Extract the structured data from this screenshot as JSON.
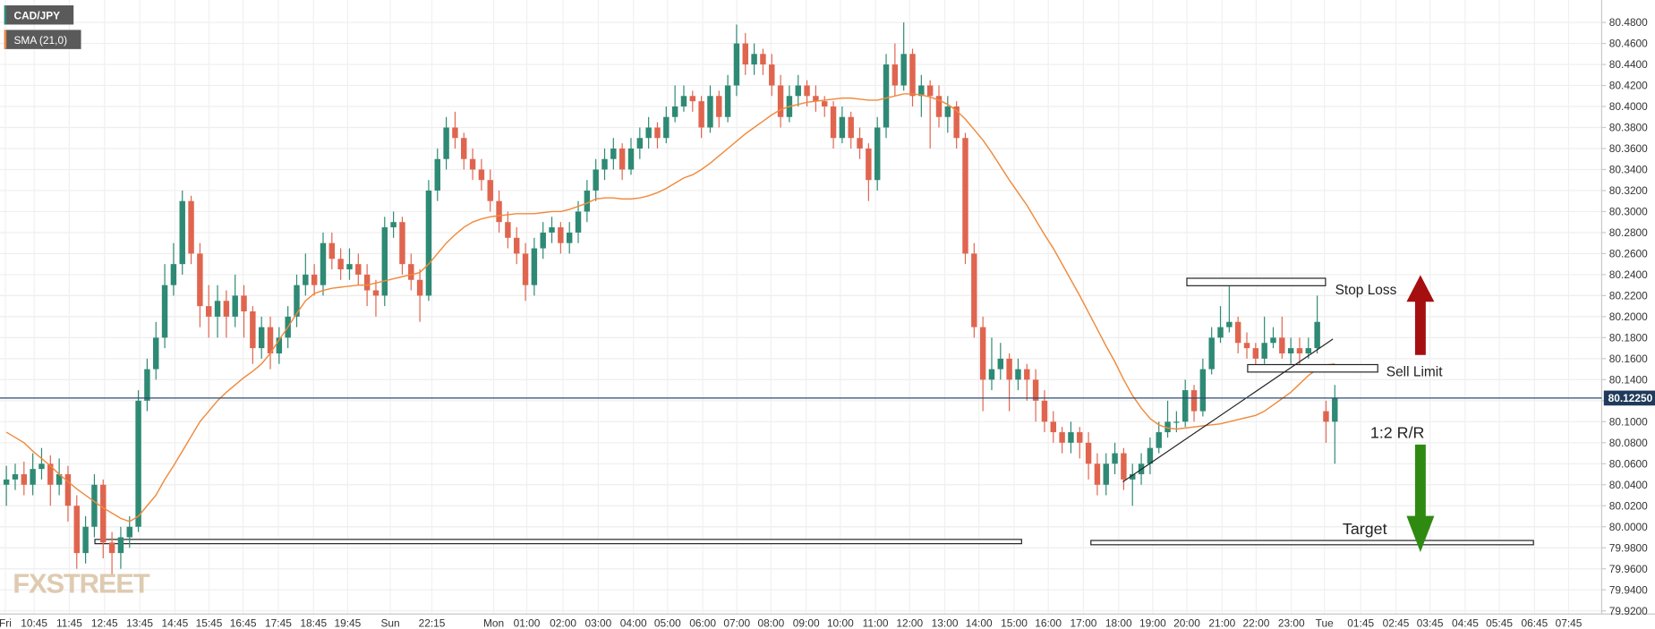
{
  "chart_data": {
    "type": "candlestick",
    "symbol": "CAD/JPY",
    "indicator": "SMA (21,0)",
    "watermark": "FXSTREET",
    "up_color": "#2e8a74",
    "down_color": "#e0654f",
    "sma_color": "#f08a3c",
    "grid": true,
    "ylim": [
      79.92,
      80.48
    ],
    "yticks": [
      {
        "value": 79.92,
        "label": "79.9200"
      },
      {
        "value": 79.94,
        "label": "79.9400"
      },
      {
        "value": 79.96,
        "label": "79.9600"
      },
      {
        "value": 79.98,
        "label": "79.9800"
      },
      {
        "value": 80.0,
        "label": "80.0000"
      },
      {
        "value": 80.02,
        "label": "80.0200"
      },
      {
        "value": 80.04,
        "label": "80.0400"
      },
      {
        "value": 80.06,
        "label": "80.0600"
      },
      {
        "value": 80.08,
        "label": "80.0800"
      },
      {
        "value": 80.1,
        "label": "80.1000"
      },
      {
        "value": 80.12,
        "label": "80.1200"
      },
      {
        "value": 80.14,
        "label": "80.1400"
      },
      {
        "value": 80.16,
        "label": "80.1600"
      },
      {
        "value": 80.18,
        "label": "80.1800"
      },
      {
        "value": 80.2,
        "label": "80.2000"
      },
      {
        "value": 80.22,
        "label": "80.2200"
      },
      {
        "value": 80.24,
        "label": "80.2400"
      },
      {
        "value": 80.26,
        "label": "80.2600"
      },
      {
        "value": 80.28,
        "label": "80.2800"
      },
      {
        "value": 80.3,
        "label": "80.3000"
      },
      {
        "value": 80.32,
        "label": "80.3200"
      },
      {
        "value": 80.34,
        "label": "80.3400"
      },
      {
        "value": 80.36,
        "label": "80.3600"
      },
      {
        "value": 80.38,
        "label": "80.3800"
      },
      {
        "value": 80.4,
        "label": "80.4000"
      },
      {
        "value": 80.42,
        "label": "80.4200"
      },
      {
        "value": 80.44,
        "label": "80.4400"
      },
      {
        "value": 80.46,
        "label": "80.4600"
      },
      {
        "value": 80.48,
        "label": "80.4800"
      }
    ],
    "xlabels": [
      "Fri",
      "10:45",
      "11:45",
      "12:45",
      "13:45",
      "14:45",
      "15:45",
      "16:45",
      "17:45",
      "18:45",
      "19:45",
      "Sun",
      "22:15",
      "Mon",
      "01:00",
      "02:00",
      "03:00",
      "04:00",
      "05:00",
      "06:00",
      "07:00",
      "08:00",
      "09:00",
      "10:00",
      "11:00",
      "12:00",
      "13:00",
      "14:00",
      "15:00",
      "16:00",
      "17:00",
      "18:00",
      "19:00",
      "20:00",
      "21:00",
      "22:00",
      "23:00",
      "Tue",
      "01:45",
      "02:45",
      "03:45",
      "04:45",
      "05:45",
      "06:45",
      "07:45"
    ],
    "last_price": {
      "value": 80.1225,
      "label": "80.12250"
    },
    "annotations": [
      "Stop Loss",
      "Sell Limit",
      "1:2 R/R",
      "Target"
    ],
    "ohlc": [
      [
        80.04,
        80.058,
        80.02,
        80.045
      ],
      [
        80.045,
        80.06,
        80.035,
        80.05
      ],
      [
        80.05,
        80.062,
        80.03,
        80.04
      ],
      [
        80.04,
        80.07,
        80.03,
        80.055
      ],
      [
        80.055,
        80.075,
        80.045,
        80.06
      ],
      [
        80.06,
        80.068,
        80.02,
        80.04
      ],
      [
        80.04,
        80.065,
        80.03,
        80.05
      ],
      [
        80.05,
        80.058,
        80.005,
        80.02
      ],
      [
        80.02,
        80.03,
        79.96,
        79.975
      ],
      [
        79.975,
        80.01,
        79.965,
        80.0
      ],
      [
        80.0,
        80.05,
        79.99,
        80.04
      ],
      [
        80.04,
        80.045,
        79.97,
        79.985
      ],
      [
        79.985,
        79.995,
        79.955,
        79.975
      ],
      [
        79.975,
        80.0,
        79.96,
        79.99
      ],
      [
        79.99,
        80.01,
        79.98,
        80.0
      ],
      [
        80.0,
        80.13,
        79.995,
        80.12
      ],
      [
        80.12,
        80.16,
        80.11,
        80.15
      ],
      [
        80.15,
        80.195,
        80.14,
        80.18
      ],
      [
        80.18,
        80.25,
        80.17,
        80.23
      ],
      [
        80.23,
        80.27,
        80.22,
        80.25
      ],
      [
        80.25,
        80.32,
        80.24,
        80.31
      ],
      [
        80.31,
        80.315,
        80.25,
        80.26
      ],
      [
        80.26,
        80.27,
        80.19,
        80.21
      ],
      [
        80.21,
        80.23,
        80.18,
        80.2
      ],
      [
        80.2,
        80.23,
        80.18,
        80.215
      ],
      [
        80.215,
        80.225,
        80.18,
        80.2
      ],
      [
        80.2,
        80.24,
        80.19,
        80.22
      ],
      [
        80.22,
        80.23,
        80.18,
        80.205
      ],
      [
        80.205,
        80.21,
        80.155,
        80.17
      ],
      [
        80.17,
        80.2,
        80.16,
        80.19
      ],
      [
        80.19,
        80.2,
        80.15,
        80.165
      ],
      [
        80.165,
        80.19,
        80.155,
        80.18
      ],
      [
        80.18,
        80.21,
        80.17,
        80.2
      ],
      [
        80.2,
        80.24,
        80.19,
        80.23
      ],
      [
        80.23,
        80.26,
        80.22,
        80.24
      ],
      [
        80.24,
        80.25,
        80.22,
        80.23
      ],
      [
        80.23,
        80.28,
        80.22,
        80.27
      ],
      [
        80.27,
        80.28,
        80.245,
        80.255
      ],
      [
        80.255,
        80.265,
        80.235,
        80.245
      ],
      [
        80.245,
        80.265,
        80.235,
        80.25
      ],
      [
        80.25,
        80.26,
        80.23,
        80.24
      ],
      [
        80.24,
        80.25,
        80.21,
        80.225
      ],
      [
        80.225,
        80.235,
        80.2,
        80.22
      ],
      [
        80.22,
        80.295,
        80.21,
        80.285
      ],
      [
        80.285,
        80.3,
        80.275,
        80.29
      ],
      [
        80.29,
        80.295,
        80.24,
        80.25
      ],
      [
        80.25,
        80.26,
        80.225,
        80.235
      ],
      [
        80.235,
        80.245,
        80.195,
        80.22
      ],
      [
        80.22,
        80.33,
        80.215,
        80.32
      ],
      [
        80.32,
        80.36,
        80.31,
        80.35
      ],
      [
        80.35,
        80.39,
        80.34,
        80.38
      ],
      [
        80.38,
        80.395,
        80.36,
        80.37
      ],
      [
        80.37,
        80.375,
        80.34,
        80.35
      ],
      [
        80.35,
        80.36,
        80.33,
        80.34
      ],
      [
        80.34,
        80.35,
        80.32,
        80.33
      ],
      [
        80.33,
        80.34,
        80.3,
        80.31
      ],
      [
        80.31,
        80.32,
        80.28,
        80.29
      ],
      [
        80.29,
        80.3,
        80.265,
        80.275
      ],
      [
        80.275,
        80.285,
        80.25,
        80.26
      ],
      [
        80.26,
        80.27,
        80.215,
        80.23
      ],
      [
        80.23,
        80.275,
        80.22,
        80.265
      ],
      [
        80.265,
        80.29,
        80.255,
        80.28
      ],
      [
        80.28,
        80.295,
        80.27,
        80.285
      ],
      [
        80.285,
        80.29,
        80.26,
        80.27
      ],
      [
        80.27,
        80.29,
        80.26,
        80.28
      ],
      [
        80.28,
        80.31,
        80.27,
        80.3
      ],
      [
        80.3,
        80.33,
        80.29,
        80.32
      ],
      [
        80.32,
        80.35,
        80.31,
        80.34
      ],
      [
        80.34,
        80.36,
        80.33,
        80.35
      ],
      [
        80.35,
        80.37,
        80.34,
        80.36
      ],
      [
        80.36,
        80.365,
        80.33,
        80.34
      ],
      [
        80.34,
        80.37,
        80.335,
        80.36
      ],
      [
        80.36,
        80.38,
        80.35,
        80.37
      ],
      [
        80.37,
        80.39,
        80.36,
        80.38
      ],
      [
        80.38,
        80.385,
        80.36,
        80.37
      ],
      [
        80.37,
        80.4,
        80.365,
        80.39
      ],
      [
        80.39,
        80.42,
        80.385,
        80.4
      ],
      [
        80.4,
        80.42,
        80.395,
        80.41
      ],
      [
        80.41,
        80.415,
        80.395,
        80.405
      ],
      [
        80.405,
        80.41,
        80.37,
        80.38
      ],
      [
        80.38,
        80.42,
        80.375,
        80.41
      ],
      [
        80.41,
        80.415,
        80.38,
        80.39
      ],
      [
        80.39,
        80.43,
        80.385,
        80.42
      ],
      [
        80.42,
        80.478,
        80.41,
        80.46
      ],
      [
        80.46,
        80.47,
        80.43,
        80.44
      ],
      [
        80.44,
        80.46,
        80.43,
        80.45
      ],
      [
        80.45,
        80.455,
        80.43,
        80.44
      ],
      [
        80.44,
        80.45,
        80.41,
        80.42
      ],
      [
        80.42,
        80.43,
        80.38,
        80.39
      ],
      [
        80.39,
        80.42,
        80.385,
        80.41
      ],
      [
        80.41,
        80.43,
        80.4,
        80.42
      ],
      [
        80.42,
        80.425,
        80.4,
        80.41
      ],
      [
        80.41,
        80.42,
        80.395,
        80.405
      ],
      [
        80.405,
        80.41,
        80.39,
        80.4
      ],
      [
        80.4,
        80.405,
        80.36,
        80.37
      ],
      [
        80.37,
        80.4,
        80.365,
        80.39
      ],
      [
        80.39,
        80.395,
        80.36,
        80.37
      ],
      [
        80.37,
        80.38,
        80.35,
        80.36
      ],
      [
        80.36,
        80.365,
        80.31,
        80.33
      ],
      [
        80.33,
        80.39,
        80.32,
        80.38
      ],
      [
        80.38,
        80.45,
        80.37,
        80.44
      ],
      [
        80.44,
        80.46,
        80.41,
        80.42
      ],
      [
        80.42,
        80.48,
        80.415,
        80.45
      ],
      [
        80.45,
        80.455,
        80.4,
        80.41
      ],
      [
        80.41,
        80.43,
        80.39,
        80.42
      ],
      [
        80.42,
        80.425,
        80.36,
        80.41
      ],
      [
        80.41,
        80.42,
        80.38,
        80.39
      ],
      [
        80.39,
        80.41,
        80.375,
        80.4
      ],
      [
        80.4,
        80.405,
        80.36,
        80.37
      ],
      [
        80.37,
        80.375,
        80.25,
        80.26
      ],
      [
        80.26,
        80.27,
        80.18,
        80.19
      ],
      [
        80.19,
        80.2,
        80.11,
        80.14
      ],
      [
        80.14,
        80.18,
        80.13,
        80.15
      ],
      [
        80.15,
        80.175,
        80.14,
        80.16
      ],
      [
        80.16,
        80.165,
        80.11,
        80.14
      ],
      [
        80.14,
        80.16,
        80.13,
        80.15
      ],
      [
        80.15,
        80.155,
        80.12,
        80.14
      ],
      [
        80.14,
        80.15,
        80.1,
        80.12
      ],
      [
        80.12,
        80.13,
        80.09,
        80.1
      ],
      [
        80.1,
        80.11,
        80.08,
        80.09
      ],
      [
        80.09,
        80.095,
        80.07,
        80.08
      ],
      [
        80.08,
        80.1,
        80.07,
        80.09
      ],
      [
        80.09,
        80.095,
        80.065,
        80.08
      ],
      [
        80.08,
        80.09,
        80.045,
        80.06
      ],
      [
        80.06,
        80.07,
        80.03,
        80.04
      ],
      [
        80.04,
        80.07,
        80.03,
        80.06
      ],
      [
        80.06,
        80.08,
        80.05,
        80.07
      ],
      [
        80.07,
        80.075,
        80.035,
        80.045
      ],
      [
        80.045,
        80.06,
        80.02,
        80.05
      ],
      [
        80.05,
        80.07,
        80.04,
        80.06
      ],
      [
        80.06,
        80.085,
        80.05,
        80.075
      ],
      [
        80.075,
        80.1,
        80.07,
        80.09
      ],
      [
        80.09,
        80.12,
        80.085,
        80.1
      ],
      [
        80.1,
        80.11,
        80.09,
        80.1
      ],
      [
        80.1,
        80.14,
        80.095,
        80.13
      ],
      [
        80.13,
        80.135,
        80.1,
        80.11
      ],
      [
        80.11,
        80.16,
        80.105,
        80.15
      ],
      [
        80.15,
        80.19,
        80.145,
        80.18
      ],
      [
        80.18,
        80.21,
        80.175,
        80.19
      ],
      [
        80.19,
        80.23,
        80.185,
        80.195
      ],
      [
        80.195,
        80.2,
        80.165,
        80.175
      ],
      [
        80.175,
        80.185,
        80.16,
        80.17
      ],
      [
        80.17,
        80.175,
        80.15,
        80.16
      ],
      [
        80.16,
        80.2,
        80.155,
        80.175
      ],
      [
        80.175,
        80.19,
        80.17,
        80.18
      ],
      [
        80.18,
        80.2,
        80.16,
        80.165
      ],
      [
        80.165,
        80.18,
        80.155,
        80.17
      ],
      [
        80.17,
        80.18,
        80.15,
        80.165
      ],
      [
        80.165,
        80.18,
        80.16,
        80.17
      ],
      [
        80.17,
        80.22,
        80.165,
        80.195
      ],
      [
        80.11,
        80.12,
        80.08,
        80.1
      ],
      [
        80.1,
        80.135,
        80.06,
        80.1225
      ]
    ],
    "sma": [
      80.09,
      80.085,
      80.08,
      80.072,
      80.065,
      80.058,
      80.05,
      80.043,
      80.036,
      80.03,
      80.024,
      80.018,
      80.013,
      80.008,
      80.005,
      80.01,
      80.02,
      80.03,
      80.045,
      80.058,
      80.072,
      80.086,
      80.1,
      80.11,
      80.12,
      80.128,
      80.135,
      80.142,
      80.148,
      80.155,
      80.165,
      80.178,
      80.19,
      80.203,
      80.215,
      80.222,
      80.225,
      80.227,
      80.228,
      80.229,
      80.23,
      80.23,
      80.232,
      80.234,
      80.236,
      80.238,
      80.24,
      80.242,
      80.25,
      80.26,
      80.27,
      80.278,
      80.285,
      80.29,
      80.293,
      80.295,
      80.296,
      80.297,
      80.298,
      80.298,
      80.298,
      80.299,
      80.3,
      80.3,
      80.302,
      80.305,
      80.308,
      80.312,
      80.313,
      80.313,
      80.312,
      80.312,
      80.313,
      80.315,
      80.318,
      80.322,
      80.327,
      80.332,
      80.335,
      80.34,
      80.346,
      80.353,
      80.36,
      80.367,
      80.374,
      80.38,
      80.386,
      80.392,
      80.397,
      80.4,
      80.402,
      80.404,
      80.405,
      80.406,
      80.407,
      80.408,
      80.408,
      80.407,
      80.406,
      80.406,
      80.408,
      80.41,
      80.412,
      80.412,
      80.411,
      80.409,
      80.406,
      80.402,
      80.396,
      80.388,
      80.378,
      80.368,
      80.356,
      80.343,
      80.33,
      80.318,
      80.306,
      80.292,
      80.278,
      80.265,
      80.25,
      80.235,
      80.22,
      80.204,
      80.188,
      80.172,
      80.157,
      80.14,
      80.125,
      80.113,
      80.103,
      80.097,
      80.094,
      80.093,
      80.094,
      80.095,
      80.096,
      80.097,
      80.098,
      80.1,
      80.102,
      80.104,
      80.106,
      80.11,
      80.116,
      80.122,
      80.128,
      80.136,
      80.144,
      80.15,
      80.154,
      80.155
    ]
  }
}
